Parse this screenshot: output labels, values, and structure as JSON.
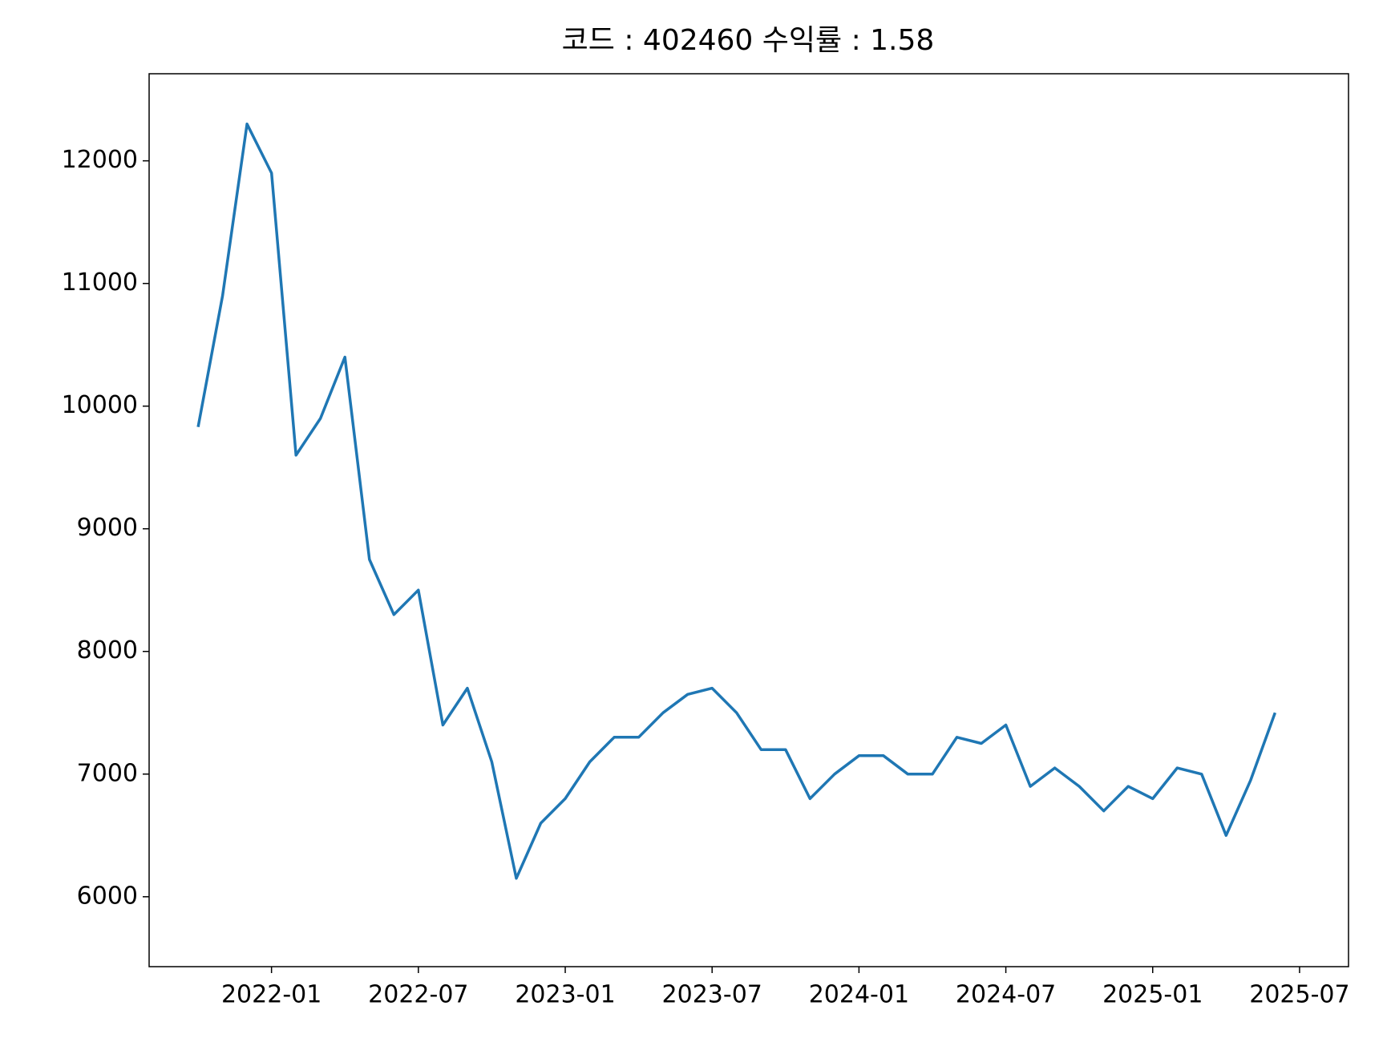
{
  "chart_data": {
    "type": "line",
    "title": "코드 : 402460 수익률 : 1.58",
    "x": [
      "2021-10",
      "2021-11",
      "2021-12",
      "2022-01",
      "2022-02",
      "2022-03",
      "2022-04",
      "2022-05",
      "2022-06",
      "2022-07",
      "2022-08",
      "2022-09",
      "2022-10",
      "2022-11",
      "2022-12",
      "2023-01",
      "2023-02",
      "2023-03",
      "2023-04",
      "2023-05",
      "2023-06",
      "2023-07",
      "2023-08",
      "2023-09",
      "2023-10",
      "2023-11",
      "2023-12",
      "2024-01",
      "2024-02",
      "2024-03",
      "2024-04",
      "2024-05",
      "2024-06",
      "2024-07",
      "2024-08",
      "2024-09",
      "2024-10",
      "2024-11",
      "2024-12",
      "2025-01",
      "2025-02",
      "2025-03",
      "2025-04",
      "2025-05",
      "2025-06"
    ],
    "series": [
      {
        "name": "402460",
        "color": "#1f77b4",
        "values": [
          9830,
          10900,
          12300,
          11900,
          9600,
          9900,
          10400,
          8750,
          8300,
          8500,
          7400,
          7700,
          7100,
          6150,
          6600,
          6800,
          7100,
          7300,
          7300,
          7500,
          7650,
          7700,
          7500,
          7200,
          7200,
          6800,
          7000,
          7150,
          7150,
          7000,
          7000,
          7300,
          7250,
          7400,
          6900,
          7050,
          6900,
          6700,
          6900,
          6800,
          7050,
          7000,
          6500,
          6950,
          7500
        ]
      }
    ],
    "xlim": [
      "2021-08",
      "2025-09"
    ],
    "xticks": [
      "2022-01",
      "2022-07",
      "2023-01",
      "2023-07",
      "2024-01",
      "2024-07",
      "2025-01",
      "2025-07"
    ],
    "ylim": [
      5430,
      12710
    ],
    "yticks": [
      6000,
      7000,
      8000,
      9000,
      10000,
      11000,
      12000
    ],
    "grid": false
  }
}
